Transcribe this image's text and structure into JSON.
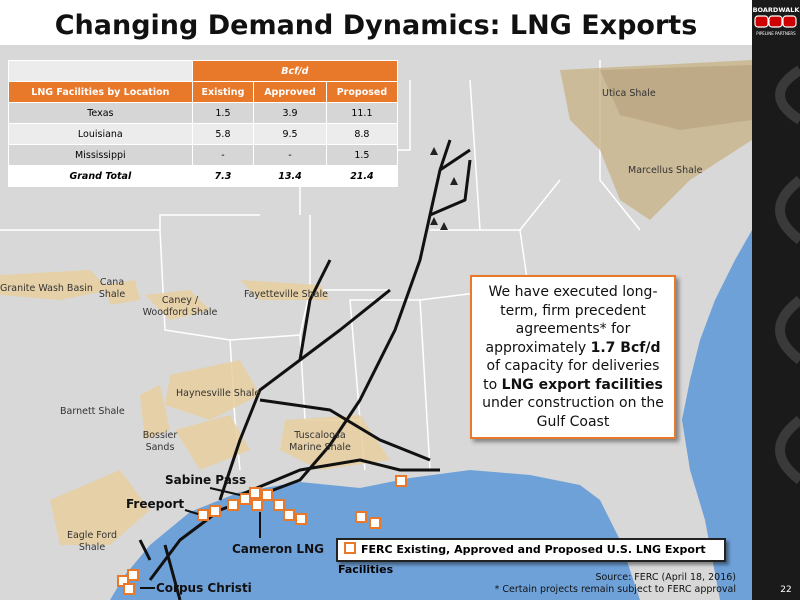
{
  "header": {
    "title": "Changing Demand Dynamics: LNG Exports",
    "logo_top": "BOARDWALK",
    "logo_bottom": "PIPELINE PARTNERS"
  },
  "table": {
    "unit": "Bcf/d",
    "columns": [
      "LNG Facilities by Location",
      "Existing",
      "Approved",
      "Proposed"
    ],
    "rows": [
      [
        "Texas",
        "1.5",
        "3.9",
        "11.1"
      ],
      [
        "Louisiana",
        "5.8",
        "9.5",
        "8.8"
      ],
      [
        "Mississippi",
        "-",
        "-",
        "1.5"
      ],
      [
        "Grand Total",
        "7.3",
        "13.4",
        "21.4"
      ]
    ]
  },
  "callout": {
    "parts": [
      "We have executed long-term, firm precedent agreements* for approximately ",
      "1.7 Bcf/d",
      " of capacity for deliveries to ",
      "LNG export facilities",
      " under construction on the Gulf Coast"
    ]
  },
  "map_labels": {
    "utica": "Utica Shale",
    "marcellus": "Marcellus Shale",
    "granite": "Granite Wash Basin",
    "cana": [
      "Cana",
      "Shale"
    ],
    "caney": [
      "Caney /",
      "Woodford Shale"
    ],
    "fayetteville": "Fayetteville Shale",
    "haynesville": "Haynesville Shale",
    "barnett": "Barnett Shale",
    "bossier": [
      "Bossier",
      "Sands"
    ],
    "tuscaloosa": [
      "Tuscaloosa",
      "Marine Shale"
    ],
    "eagleford": [
      "Eagle Ford",
      "Shale"
    ]
  },
  "facilities": [
    "Sabine Pass",
    "Freeport",
    "Cameron LNG",
    "Corpus Christi"
  ],
  "legend": "FERC Existing, Approved and Proposed U.S. LNG Export Facilities",
  "source": "Source: FERC (April 18, 2016)",
  "footnote": "* Certain projects remain subject to FERC approval",
  "page_number": "22"
}
